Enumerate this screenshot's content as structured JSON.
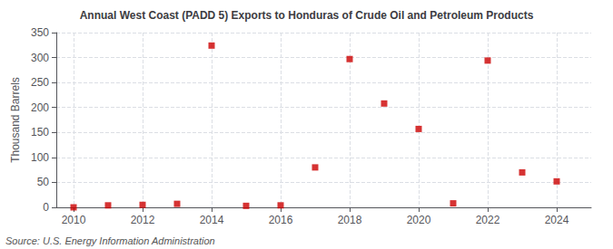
{
  "chart_data": {
    "type": "scatter",
    "title": "Annual West Coast (PADD 5) Exports to Honduras of Crude Oil and Petroleum Products",
    "ylabel": "Thousand Barrels",
    "annotations": [
      "Source: U.S. Energy Information Administration"
    ],
    "x": [
      2010,
      2011,
      2012,
      2013,
      2014,
      2015,
      2016,
      2017,
      2018,
      2019,
      2020,
      2021,
      2022,
      2023,
      2024
    ],
    "values": [
      0,
      4,
      5,
      7,
      324,
      3,
      4,
      80,
      297,
      208,
      157,
      8,
      294,
      70,
      52
    ],
    "color": "#cc0000",
    "marker": "square",
    "xlim": [
      2009.5,
      2025.0
    ],
    "xticks": [
      2010,
      2012,
      2014,
      2016,
      2018,
      2020,
      2022,
      2024
    ],
    "ylim": [
      0,
      350
    ],
    "yticks": [
      0,
      50,
      100,
      150,
      200,
      250,
      300,
      350
    ],
    "grid": true
  }
}
